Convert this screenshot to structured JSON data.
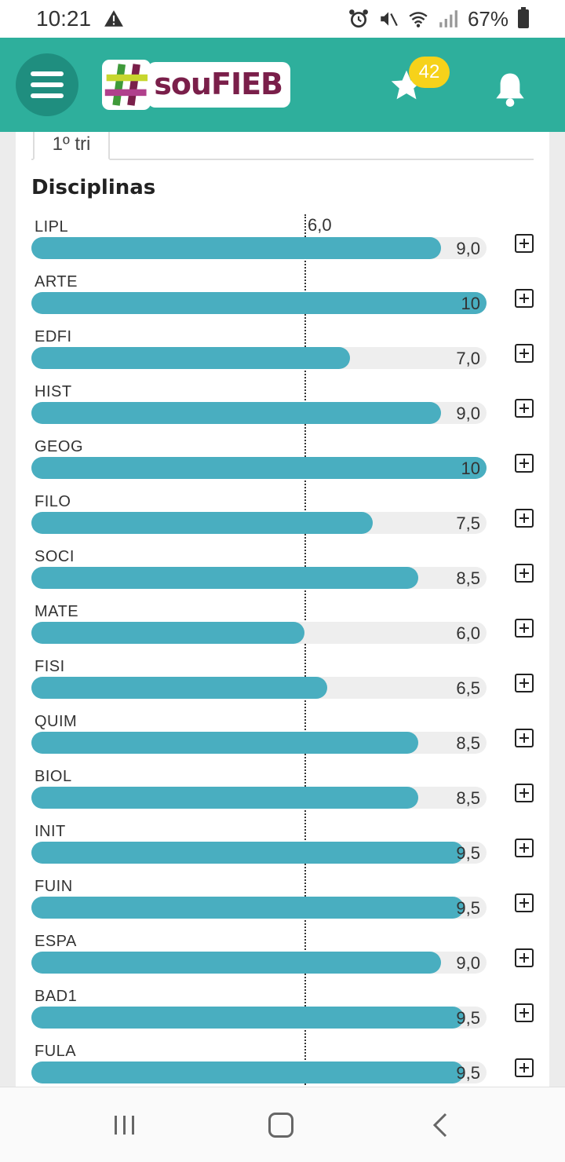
{
  "status_bar": {
    "time": "10:21",
    "battery": "67%",
    "icons": [
      "warning-icon",
      "alarm-icon",
      "mute-icon",
      "wifi-icon",
      "signal-icon",
      "battery-icon"
    ]
  },
  "header": {
    "logo_text": "souFIEB",
    "star_count": "42",
    "colors": {
      "header_bg": "#2eaf9c",
      "badge": "#f6d21a",
      "bar": "#49aec0",
      "logo_text": "#7a1f4a"
    }
  },
  "tabs": [
    {
      "label": "1º tri",
      "active": true
    }
  ],
  "section": {
    "title": "Disciplinas",
    "threshold_label": "6,0",
    "threshold_value": 6.0,
    "max_value": 10
  },
  "subjects": [
    {
      "code": "LIPL",
      "grade": 9.0,
      "grade_label": "9,0"
    },
    {
      "code": "ARTE",
      "grade": 10,
      "grade_label": "10"
    },
    {
      "code": "EDFI",
      "grade": 7.0,
      "grade_label": "7,0"
    },
    {
      "code": "HIST",
      "grade": 9.0,
      "grade_label": "9,0"
    },
    {
      "code": "GEOG",
      "grade": 10,
      "grade_label": "10"
    },
    {
      "code": "FILO",
      "grade": 7.5,
      "grade_label": "7,5"
    },
    {
      "code": "SOCI",
      "grade": 8.5,
      "grade_label": "8,5"
    },
    {
      "code": "MATE",
      "grade": 6.0,
      "grade_label": "6,0"
    },
    {
      "code": "FISI",
      "grade": 6.5,
      "grade_label": "6,5"
    },
    {
      "code": "QUIM",
      "grade": 8.5,
      "grade_label": "8,5"
    },
    {
      "code": "BIOL",
      "grade": 8.5,
      "grade_label": "8,5"
    },
    {
      "code": "INIT",
      "grade": 9.5,
      "grade_label": "9,5"
    },
    {
      "code": "FUIN",
      "grade": 9.5,
      "grade_label": "9,5"
    },
    {
      "code": "ESPA",
      "grade": 9.0,
      "grade_label": "9,0"
    },
    {
      "code": "BAD1",
      "grade": 9.5,
      "grade_label": "9,5"
    },
    {
      "code": "FULA",
      "grade": 9.5,
      "grade_label": "9,5"
    }
  ]
}
